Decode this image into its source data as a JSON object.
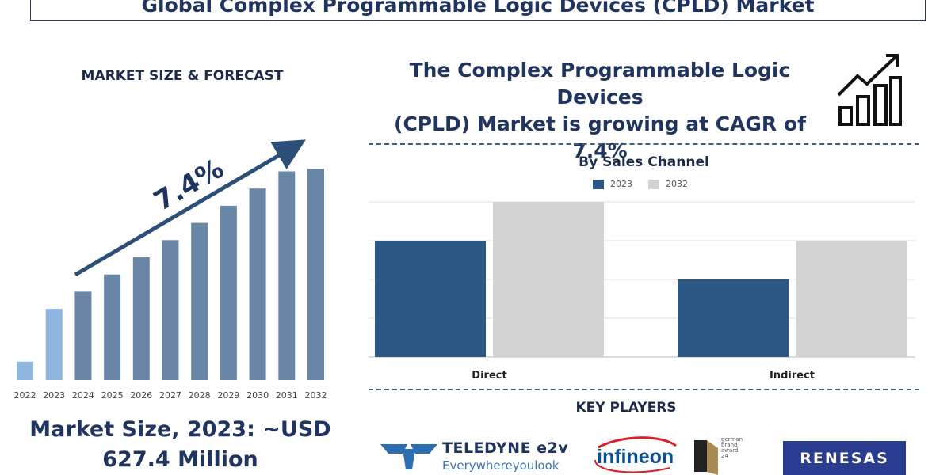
{
  "title": "Global Complex Programmable Logic Devices (CPLD) Market",
  "left_heading": "MARKET SIZE & FORECAST",
  "market_size_line1": "Market Size, 2023: ~USD",
  "market_size_line2": "627.4 Million",
  "cagr_line1": "The Complex Programmable Logic Devices",
  "cagr_line2": "(CPLD) Market is growing at CAGR of 7.4%",
  "key_players_title": "KEY PLAYERS",
  "logos": {
    "teledyne_name": "TELEDYNE e2v",
    "teledyne_tagline": "Everywhereyoulook",
    "infineon": "infineon",
    "award_lines": [
      "german",
      "brand",
      "award",
      "24"
    ],
    "renesas": "RENESAS"
  },
  "colors": {
    "forecast_past": "#8fb6df",
    "forecast_future": "#6a86a7",
    "series_2023": "#2b5785",
    "series_2032": "#d3d3d3",
    "title_navy": "#1f3560"
  },
  "chart_data": [
    {
      "type": "bar",
      "title": "MARKET SIZE & FORECAST",
      "categories": [
        "2022",
        "2023",
        "2024",
        "2025",
        "2026",
        "2027",
        "2028",
        "2029",
        "2030",
        "2031",
        "2032"
      ],
      "values": [
        7.5,
        29,
        36,
        43,
        50,
        57,
        64,
        71,
        78,
        85,
        86
      ],
      "annotation": "7.4%",
      "y_axis_shown": false
    },
    {
      "type": "bar",
      "title": "By Sales Channel",
      "categories": [
        "Direct",
        "Indirect"
      ],
      "series": [
        {
          "name": "2023",
          "values": [
            3,
            2
          ]
        },
        {
          "name": "2032",
          "values": [
            4,
            3
          ]
        }
      ],
      "ylim": [
        0,
        4
      ],
      "grid": true,
      "legend": "top-center"
    }
  ]
}
